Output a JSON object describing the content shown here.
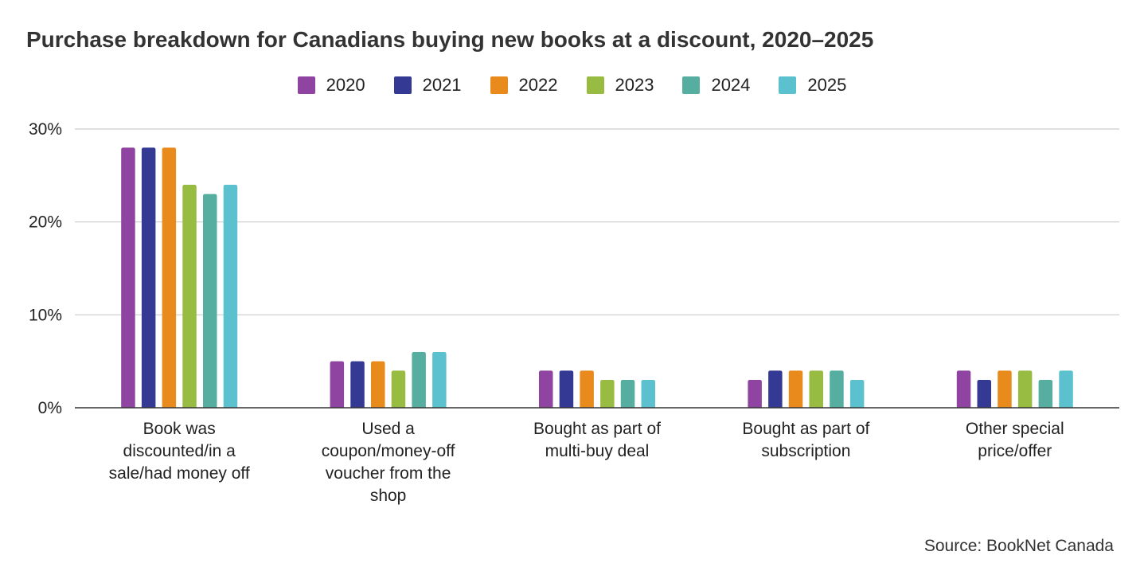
{
  "colors": {
    "2020": "#8e44a0",
    "2021": "#343a93",
    "2022": "#e98a1c",
    "2023": "#98bb41",
    "2024": "#55ae9f",
    "2025": "#5cc1ce",
    "grid": "#cccccc",
    "axis": "#333333"
  },
  "source": "Source: BookNet Canada",
  "chart_data": {
    "type": "bar",
    "title": "Purchase breakdown for Canadians buying new books at a discount, 2020–2025",
    "categories": [
      "Book was discounted/in a sale/had money off",
      "Used a coupon/money-off voucher from the shop",
      "Bought as part of multi-buy deal",
      "Bought as part of subscription",
      "Other special price/offer"
    ],
    "category_lines": [
      [
        "Book was",
        "discounted/in a",
        "sale/had money off"
      ],
      [
        "Used a",
        "coupon/money-off",
        "voucher from the",
        "shop"
      ],
      [
        "Bought as part of",
        "multi-buy deal"
      ],
      [
        "Bought as part of",
        "subscription"
      ],
      [
        "Other special",
        "price/offer"
      ]
    ],
    "series": [
      {
        "name": "2020",
        "values": [
          28,
          5,
          4,
          3,
          4
        ]
      },
      {
        "name": "2021",
        "values": [
          28,
          5,
          4,
          4,
          3
        ]
      },
      {
        "name": "2022",
        "values": [
          28,
          5,
          4,
          4,
          4
        ]
      },
      {
        "name": "2023",
        "values": [
          24,
          4,
          3,
          4,
          4
        ]
      },
      {
        "name": "2024",
        "values": [
          23,
          6,
          3,
          4,
          3
        ]
      },
      {
        "name": "2025",
        "values": [
          24,
          6,
          3,
          3,
          4
        ]
      }
    ],
    "y_ticks": [
      "0%",
      "10%",
      "20%",
      "30%"
    ],
    "y_tick_values": [
      0,
      10,
      20,
      30
    ],
    "ylim": [
      0,
      30
    ],
    "unit": "%",
    "grid": true,
    "legend_position": "top-center"
  }
}
